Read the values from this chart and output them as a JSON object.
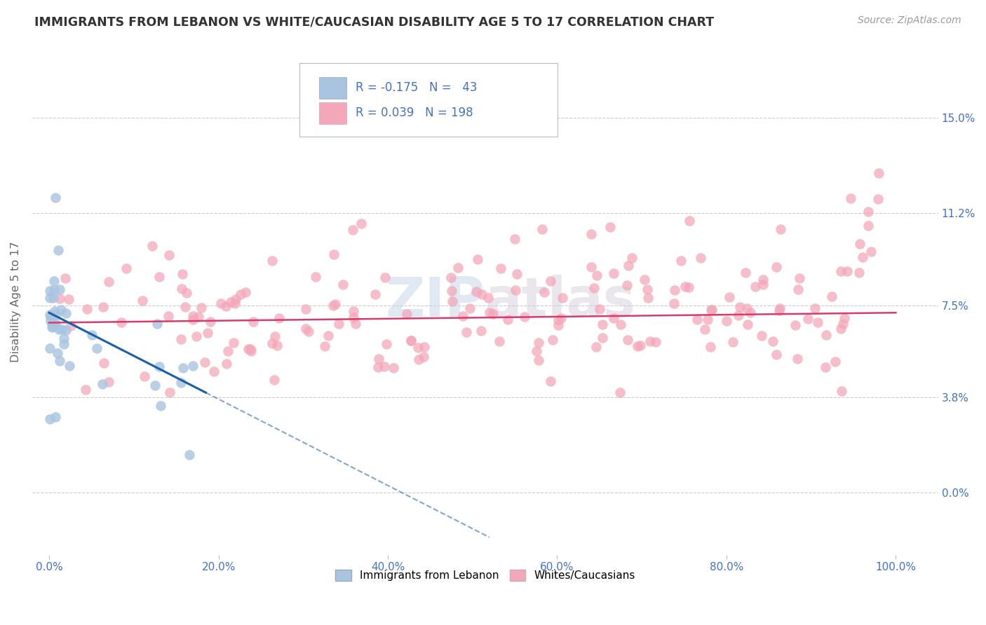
{
  "title": "IMMIGRANTS FROM LEBANON VS WHITE/CAUCASIAN DISABILITY AGE 5 TO 17 CORRELATION CHART",
  "source": "Source: ZipAtlas.com",
  "ylabel": "Disability Age 5 to 17",
  "blue_R": -0.175,
  "blue_N": 43,
  "pink_R": 0.039,
  "pink_N": 198,
  "blue_color": "#a8c4e0",
  "pink_color": "#f4a7b9",
  "blue_line_color": "#1a5fa8",
  "pink_line_color": "#d63b6b",
  "legend_blue_label": "Immigrants from Lebanon",
  "legend_pink_label": "Whites/Caucasians",
  "watermark_zip": "ZIP",
  "watermark_atlas": "atlas",
  "background_color": "#ffffff",
  "grid_color": "#cccccc",
  "title_color": "#333333",
  "axis_label_color": "#4472c4",
  "ytick_positions": [
    0.0,
    0.038,
    0.075,
    0.112,
    0.15
  ],
  "right_ytick_labels": [
    "0.0%",
    "3.8%",
    "7.5%",
    "11.2%",
    "15.0%"
  ],
  "xtick_vals": [
    0.0,
    0.2,
    0.4,
    0.6,
    0.8,
    1.0
  ],
  "xtick_labels": [
    "0.0%",
    "20.0%",
    "40.0%",
    "60.0%",
    "80.0%",
    "100.0%"
  ],
  "xlim": [
    -0.02,
    1.05
  ],
  "ylim": [
    -0.025,
    0.178
  ]
}
